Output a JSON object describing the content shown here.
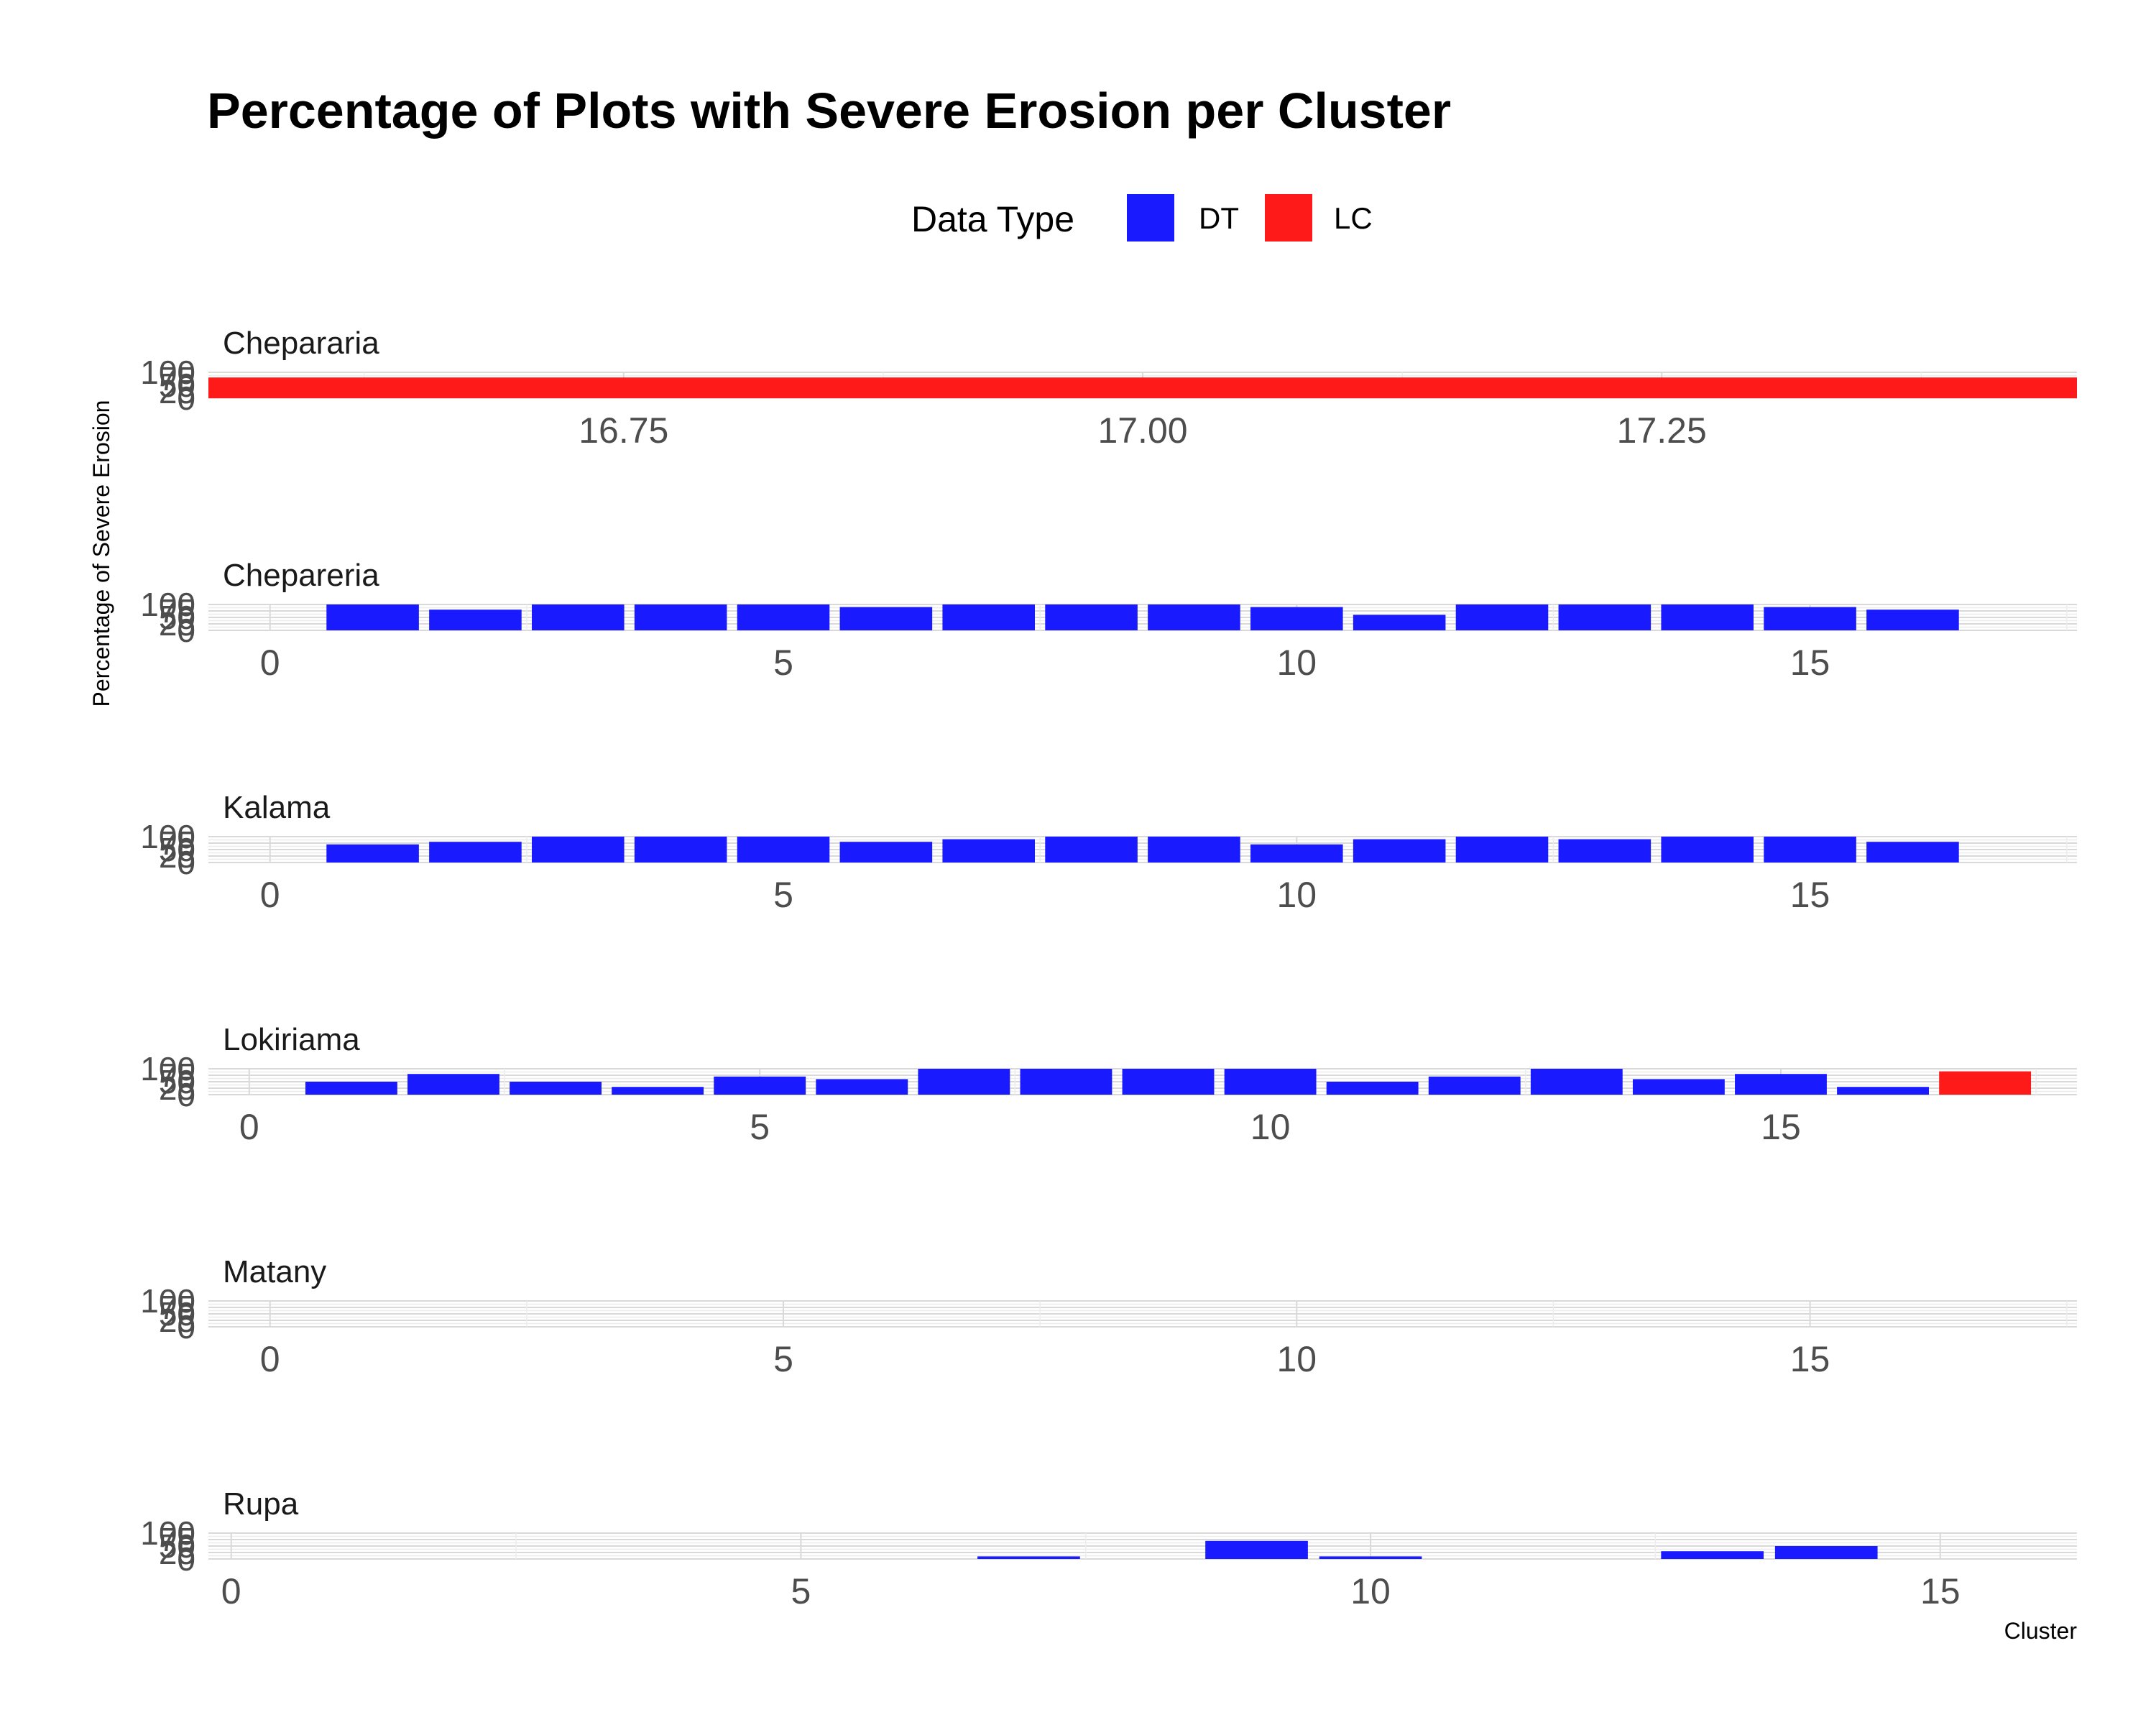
{
  "chart_data": {
    "type": "bar",
    "title": "Percentage of Plots with Severe Erosion per Cluster",
    "xlabel": "Cluster",
    "ylabel": "Percentage of Severe Erosion",
    "ylim": [
      0,
      100
    ],
    "yticks": [
      "0",
      "25",
      "50",
      "75",
      "100"
    ],
    "legend": {
      "title": "Data Type",
      "position": "top",
      "entries": [
        {
          "name": "DT",
          "color": "#1a1aff"
        },
        {
          "name": "LC",
          "color": "#ff1a1a"
        }
      ]
    },
    "facets": [
      {
        "name": "Chepararia",
        "xlim": [
          16.55,
          17.45
        ],
        "xticks": [
          16.75,
          17.0,
          17.25
        ],
        "tick_labels": [
          "16.75",
          "17.00",
          "17.25"
        ],
        "bars": [
          {
            "cluster": 17,
            "value": 80,
            "type": "LC"
          }
        ]
      },
      {
        "name": "Chepareria",
        "xlim": [
          -0.6,
          17.6
        ],
        "xticks": [
          0,
          5,
          10,
          15
        ],
        "tick_labels": [
          "0",
          "5",
          "10",
          "15"
        ],
        "bars": [
          {
            "cluster": 1,
            "value": 100,
            "type": "DT"
          },
          {
            "cluster": 2,
            "value": 80,
            "type": "DT"
          },
          {
            "cluster": 3,
            "value": 100,
            "type": "DT"
          },
          {
            "cluster": 4,
            "value": 100,
            "type": "DT"
          },
          {
            "cluster": 5,
            "value": 100,
            "type": "DT"
          },
          {
            "cluster": 6,
            "value": 90,
            "type": "DT"
          },
          {
            "cluster": 7,
            "value": 100,
            "type": "DT"
          },
          {
            "cluster": 8,
            "value": 100,
            "type": "DT"
          },
          {
            "cluster": 9,
            "value": 100,
            "type": "DT"
          },
          {
            "cluster": 10,
            "value": 90,
            "type": "DT"
          },
          {
            "cluster": 11,
            "value": 60,
            "type": "DT"
          },
          {
            "cluster": 12,
            "value": 100,
            "type": "DT"
          },
          {
            "cluster": 13,
            "value": 100,
            "type": "DT"
          },
          {
            "cluster": 14,
            "value": 100,
            "type": "DT"
          },
          {
            "cluster": 15,
            "value": 90,
            "type": "DT"
          },
          {
            "cluster": 16,
            "value": 80,
            "type": "DT"
          }
        ]
      },
      {
        "name": "Kalama",
        "xlim": [
          -0.6,
          17.6
        ],
        "xticks": [
          0,
          5,
          10,
          15
        ],
        "tick_labels": [
          "0",
          "5",
          "10",
          "15"
        ],
        "bars": [
          {
            "cluster": 1,
            "value": 70,
            "type": "DT"
          },
          {
            "cluster": 2,
            "value": 80,
            "type": "DT"
          },
          {
            "cluster": 3,
            "value": 100,
            "type": "DT"
          },
          {
            "cluster": 4,
            "value": 100,
            "type": "DT"
          },
          {
            "cluster": 5,
            "value": 100,
            "type": "DT"
          },
          {
            "cluster": 6,
            "value": 80,
            "type": "DT"
          },
          {
            "cluster": 7,
            "value": 90,
            "type": "DT"
          },
          {
            "cluster": 8,
            "value": 100,
            "type": "DT"
          },
          {
            "cluster": 9,
            "value": 100,
            "type": "DT"
          },
          {
            "cluster": 10,
            "value": 70,
            "type": "DT"
          },
          {
            "cluster": 11,
            "value": 90,
            "type": "DT"
          },
          {
            "cluster": 12,
            "value": 100,
            "type": "DT"
          },
          {
            "cluster": 13,
            "value": 90,
            "type": "DT"
          },
          {
            "cluster": 14,
            "value": 100,
            "type": "DT"
          },
          {
            "cluster": 15,
            "value": 100,
            "type": "DT"
          },
          {
            "cluster": 16,
            "value": 80,
            "type": "DT"
          }
        ]
      },
      {
        "name": "Lokiriama",
        "xlim": [
          -0.4,
          17.9
        ],
        "xticks": [
          0,
          5,
          10,
          15
        ],
        "tick_labels": [
          "0",
          "5",
          "10",
          "15"
        ],
        "bars": [
          {
            "cluster": 1,
            "value": 50,
            "type": "DT"
          },
          {
            "cluster": 2,
            "value": 80,
            "type": "DT"
          },
          {
            "cluster": 3,
            "value": 50,
            "type": "DT"
          },
          {
            "cluster": 4,
            "value": 30,
            "type": "DT"
          },
          {
            "cluster": 5,
            "value": 70,
            "type": "DT"
          },
          {
            "cluster": 6,
            "value": 60,
            "type": "DT"
          },
          {
            "cluster": 7,
            "value": 100,
            "type": "DT"
          },
          {
            "cluster": 8,
            "value": 100,
            "type": "DT"
          },
          {
            "cluster": 9,
            "value": 100,
            "type": "DT"
          },
          {
            "cluster": 10,
            "value": 100,
            "type": "DT"
          },
          {
            "cluster": 11,
            "value": 50,
            "type": "DT"
          },
          {
            "cluster": 12,
            "value": 70,
            "type": "DT"
          },
          {
            "cluster": 13,
            "value": 100,
            "type": "DT"
          },
          {
            "cluster": 14,
            "value": 60,
            "type": "DT"
          },
          {
            "cluster": 15,
            "value": 80,
            "type": "DT"
          },
          {
            "cluster": 16,
            "value": 30,
            "type": "DT"
          },
          {
            "cluster": 17,
            "value": 90,
            "type": "LC"
          }
        ]
      },
      {
        "name": "Matany",
        "xlim": [
          -0.6,
          17.6
        ],
        "xticks": [
          0,
          5,
          10,
          15
        ],
        "tick_labels": [
          "0",
          "5",
          "10",
          "15"
        ],
        "bars": []
      },
      {
        "name": "Rupa",
        "xlim": [
          -0.2,
          16.2
        ],
        "xticks": [
          0,
          5,
          10,
          15
        ],
        "tick_labels": [
          "0",
          "5",
          "10",
          "15"
        ],
        "bars": [
          {
            "cluster": 7,
            "value": 10,
            "type": "DT"
          },
          {
            "cluster": 9,
            "value": 70,
            "type": "DT"
          },
          {
            "cluster": 10,
            "value": 10,
            "type": "DT"
          },
          {
            "cluster": 13,
            "value": 30,
            "type": "DT"
          },
          {
            "cluster": 14,
            "value": 50,
            "type": "DT"
          }
        ]
      }
    ]
  }
}
